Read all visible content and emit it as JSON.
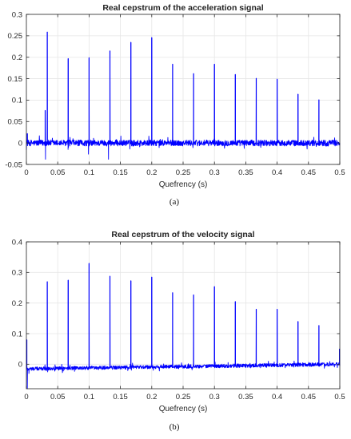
{
  "chart_data": [
    {
      "type": "line",
      "title": "Real cepstrum of the acceleration signal",
      "xlabel": "Quefrency (s)",
      "ylabel": "",
      "caption": "(a)",
      "xlim": [
        0,
        0.5
      ],
      "ylim": [
        -0.05,
        0.3
      ],
      "xticks": [
        "0",
        "0.05",
        "0.1",
        "0.15",
        "0.2",
        "0.25",
        "0.3",
        "0.35",
        "0.4",
        "0.45",
        "0.5"
      ],
      "yticks": [
        "-0.05",
        "0",
        "0.05",
        "0.1",
        "0.15",
        "0.2",
        "0.25",
        "0.3"
      ],
      "grid": true,
      "color": "#0000ff",
      "baseline": 0,
      "noise_amplitude": 0.007,
      "peaks": [
        {
          "x": 0.0015,
          "y": 0.022
        },
        {
          "x": 0.03,
          "y": 0.076
        },
        {
          "x": 0.0333,
          "y": 0.259
        },
        {
          "x": 0.0667,
          "y": 0.197
        },
        {
          "x": 0.1,
          "y": 0.199
        },
        {
          "x": 0.1333,
          "y": 0.215
        },
        {
          "x": 0.1667,
          "y": 0.235
        },
        {
          "x": 0.2,
          "y": 0.246
        },
        {
          "x": 0.2333,
          "y": 0.184
        },
        {
          "x": 0.2667,
          "y": 0.162
        },
        {
          "x": 0.3,
          "y": 0.184
        },
        {
          "x": 0.3333,
          "y": 0.16
        },
        {
          "x": 0.3667,
          "y": 0.151
        },
        {
          "x": 0.4,
          "y": 0.149
        },
        {
          "x": 0.4333,
          "y": 0.114
        },
        {
          "x": 0.4667,
          "y": 0.101
        }
      ],
      "dips": [
        {
          "x": 0.0305,
          "y": -0.038
        },
        {
          "x": 0.099,
          "y": -0.026
        },
        {
          "x": 0.131,
          "y": -0.038
        },
        {
          "x": 0.0665,
          "y": -0.015
        },
        {
          "x": 0.165,
          "y": -0.014
        }
      ]
    },
    {
      "type": "line",
      "title": "Real cepstrum of the velocity signal",
      "xlabel": "Quefrency (s)",
      "ylabel": "",
      "caption": "(b)",
      "xlim": [
        0,
        0.5
      ],
      "ylim": [
        -0.08,
        0.4
      ],
      "xticks": [
        "0",
        "0.05",
        "0.1",
        "0.15",
        "0.2",
        "0.25",
        "0.3",
        "0.35",
        "0.4",
        "0.45",
        "0.5"
      ],
      "yticks": [
        "0",
        "0.1",
        "0.2",
        "0.3",
        "0.4"
      ],
      "grid": true,
      "color": "#0000ff",
      "baseline": -0.015,
      "baseline_end": 0.0,
      "noise_amplitude": 0.006,
      "peaks": [
        {
          "x": 0.0007,
          "y": 0.08
        },
        {
          "x": 0.0333,
          "y": 0.27
        },
        {
          "x": 0.0667,
          "y": 0.275
        },
        {
          "x": 0.1,
          "y": 0.33
        },
        {
          "x": 0.1333,
          "y": 0.288
        },
        {
          "x": 0.1667,
          "y": 0.273
        },
        {
          "x": 0.2,
          "y": 0.285
        },
        {
          "x": 0.2333,
          "y": 0.234
        },
        {
          "x": 0.2667,
          "y": 0.227
        },
        {
          "x": 0.3,
          "y": 0.254
        },
        {
          "x": 0.3333,
          "y": 0.205
        },
        {
          "x": 0.3667,
          "y": 0.18
        },
        {
          "x": 0.4,
          "y": 0.18
        },
        {
          "x": 0.4333,
          "y": 0.14
        },
        {
          "x": 0.4667,
          "y": 0.127
        },
        {
          "x": 0.4995,
          "y": 0.05
        }
      ],
      "dips": [
        {
          "x": 0.0015,
          "y": -0.08
        },
        {
          "x": 0.004,
          "y": -0.03
        }
      ]
    }
  ]
}
